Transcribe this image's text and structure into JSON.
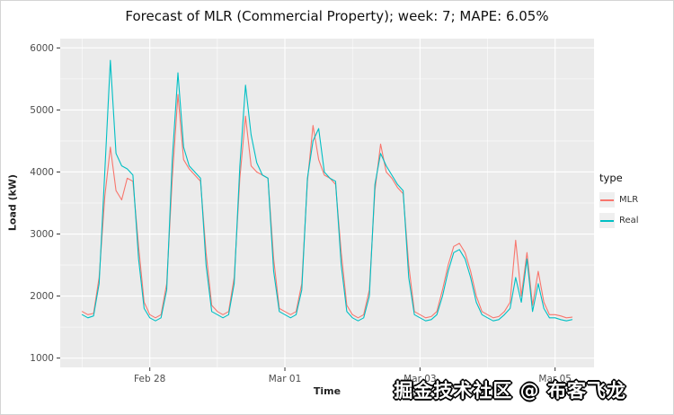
{
  "figure": {
    "watermark": "掘金技术社区 @ 布客飞龙"
  },
  "chart_data": {
    "type": "line",
    "title": "Forecast of MLR (Commercial Property); week: 7; MAPE: 6.05%",
    "xlabel": "Time",
    "ylabel": "Load (kW)",
    "x_unit": "hours since Feb 27 00:00 (2-hour sampling)",
    "x_step_hours": 2,
    "x_ticks": [
      {
        "t": 24,
        "label": "Feb 28"
      },
      {
        "t": 72,
        "label": "Mar 01"
      },
      {
        "t": 120,
        "label": "Mar 03"
      },
      {
        "t": 168,
        "label": "Mar 05"
      }
    ],
    "x_minor_ticks": [
      0,
      48,
      96,
      144
    ],
    "y_ticks": [
      1000,
      2000,
      3000,
      4000,
      5000,
      6000
    ],
    "y_minor": [
      1500,
      2500,
      3500,
      4500,
      5500
    ],
    "ylim": [
      850,
      6150
    ],
    "grid": "white major and minor on gray panel",
    "panel_bg": "#EBEBEB",
    "legend": {
      "title": "type",
      "position": "right",
      "entries": [
        {
          "label": "MLR",
          "color": "#F8766D"
        },
        {
          "label": "Real",
          "color": "#00BFC4"
        }
      ]
    },
    "series": [
      {
        "name": "MLR",
        "color": "#F8766D",
        "values": [
          1750,
          1700,
          1720,
          2300,
          3600,
          4400,
          3700,
          3550,
          3900,
          3850,
          2800,
          1900,
          1700,
          1650,
          1700,
          2200,
          3900,
          5250,
          4200,
          4050,
          3950,
          3850,
          2700,
          1850,
          1750,
          1700,
          1750,
          2300,
          3900,
          4900,
          4100,
          4000,
          3950,
          3900,
          2600,
          1800,
          1750,
          1700,
          1750,
          2200,
          3850,
          4750,
          4200,
          3950,
          3900,
          3800,
          2700,
          1850,
          1700,
          1650,
          1700,
          2100,
          3700,
          4450,
          4000,
          3900,
          3750,
          3650,
          2500,
          1750,
          1700,
          1650,
          1670,
          1750,
          2100,
          2500,
          2800,
          2850,
          2700,
          2400,
          2000,
          1750,
          1700,
          1650,
          1670,
          1750,
          1900,
          2900,
          2000,
          2700,
          1850,
          2400,
          1900,
          1700,
          1700,
          1680,
          1650,
          1660
        ]
      },
      {
        "name": "Real",
        "color": "#00BFC4",
        "values": [
          1700,
          1650,
          1680,
          2200,
          4000,
          5800,
          4300,
          4100,
          4050,
          3950,
          2600,
          1800,
          1650,
          1600,
          1650,
          2100,
          4200,
          5600,
          4400,
          4100,
          4000,
          3900,
          2500,
          1750,
          1700,
          1650,
          1700,
          2200,
          4100,
          5400,
          4600,
          4150,
          3950,
          3900,
          2400,
          1750,
          1700,
          1650,
          1700,
          2100,
          3900,
          4500,
          4700,
          4000,
          3900,
          3850,
          2500,
          1750,
          1650,
          1600,
          1650,
          2000,
          3800,
          4300,
          4100,
          3950,
          3800,
          3700,
          2300,
          1700,
          1650,
          1600,
          1620,
          1700,
          2000,
          2400,
          2700,
          2750,
          2600,
          2300,
          1900,
          1700,
          1650,
          1600,
          1620,
          1700,
          1800,
          2300,
          1900,
          2600,
          1750,
          2200,
          1800,
          1650,
          1650,
          1620,
          1600,
          1620
        ]
      }
    ]
  }
}
